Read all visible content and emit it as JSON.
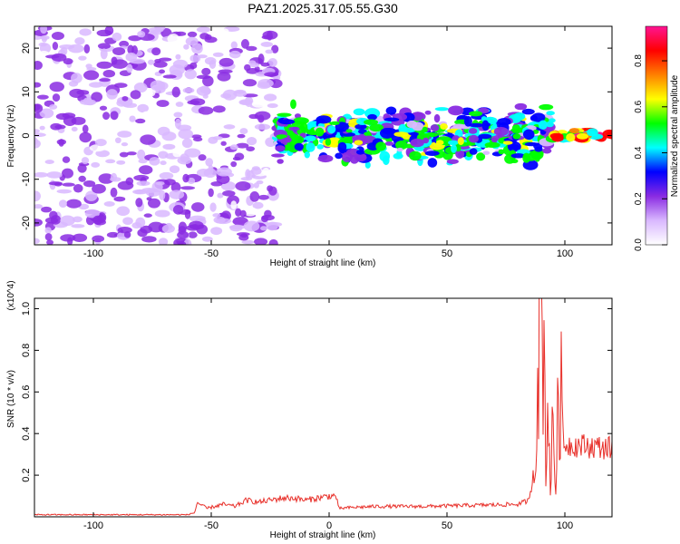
{
  "title": "PAZ1.2025.317.05.55.G30",
  "chart_data": [
    {
      "type": "heatmap",
      "xlabel": "Height of straight line (km)",
      "ylabel": "Frequency (Hz)",
      "xlim": [
        -125,
        120
      ],
      "ylim": [
        -25,
        25
      ],
      "x_ticks": [
        -100,
        -50,
        0,
        50,
        100
      ],
      "y_ticks": [
        20,
        10,
        0,
        -10,
        -20
      ],
      "colorbar": {
        "label": "Normalized spectral amplitude",
        "range": [
          0.0,
          0.95
        ],
        "ticks": [
          0.0,
          0.2,
          0.4,
          0.6,
          0.8
        ],
        "colors": [
          "#ffffff",
          "#d9b8ff",
          "#8a2be2",
          "#0000ff",
          "#00ffff",
          "#00ff00",
          "#ffff00",
          "#ff8000",
          "#ff0000",
          "#ff1493"
        ]
      },
      "features": [
        {
          "x_from": -125,
          "x_to": -22,
          "freq_spread": 25,
          "amplitude": 0.15
        },
        {
          "x_from": -22,
          "x_to": 95,
          "freq_center": 0,
          "freq_spread": 8,
          "amplitude": 0.35
        },
        {
          "x_from": 95,
          "x_to": 120,
          "freq_center": 0,
          "freq_spread": 2,
          "amplitude": 0.9
        }
      ]
    },
    {
      "type": "line",
      "xlabel": "Height of straight line (km)",
      "ylabel": "SNR (10 * v/v)",
      "y_multiplier": "(x10^4)",
      "xlim": [
        -125,
        120
      ],
      "ylim": [
        0,
        1.05
      ],
      "x_ticks": [
        -100,
        -50,
        0,
        50,
        100
      ],
      "y_ticks": [
        1.0,
        0.8,
        0.6,
        0.4,
        0.2
      ],
      "line_color": "#e8302a",
      "series": [
        {
          "x": [
            -125,
            -100,
            -80,
            -60,
            -57,
            -56,
            -52,
            -45,
            -40,
            -35,
            -30,
            -25,
            -20,
            -15,
            -10,
            -5,
            0,
            3,
            4,
            10,
            20,
            40,
            60,
            80,
            85,
            87,
            88,
            89,
            90,
            91,
            92,
            93,
            94,
            95,
            96,
            97,
            98,
            99,
            100,
            110,
            120
          ],
          "values": [
            0.01,
            0.01,
            0.01,
            0.01,
            0.02,
            0.07,
            0.04,
            0.06,
            0.05,
            0.08,
            0.07,
            0.08,
            0.09,
            0.09,
            0.08,
            0.09,
            0.1,
            0.1,
            0.04,
            0.045,
            0.05,
            0.05,
            0.055,
            0.06,
            0.08,
            0.25,
            0.55,
            0.9,
            1.04,
            0.85,
            0.25,
            0.6,
            0.08,
            0.5,
            0.12,
            0.45,
            0.7,
            0.4,
            0.35,
            0.34,
            0.33
          ]
        }
      ]
    }
  ]
}
